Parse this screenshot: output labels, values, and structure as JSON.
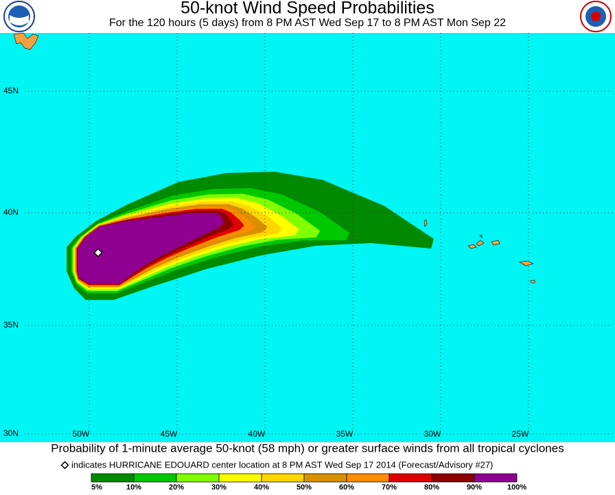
{
  "header": {
    "title": "50-knot Wind Speed Probabilities",
    "subtitle": "For the 120 hours (5 days) from 8 PM AST Wed Sep 17 to 8 PM AST Mon Sep 22"
  },
  "map": {
    "lat_labels": [
      "45N",
      "40N",
      "35N",
      "30N"
    ],
    "lon_labels": [
      "50W",
      "45W",
      "40W",
      "35W",
      "30W",
      "25W"
    ]
  },
  "caption": "Probability of 1-minute average 50-knot (58 mph) or greater surface winds from all tropical cyclones",
  "marker_note": "indicates HURRICANE EDOUARD center location at 8 PM AST Wed Sep 17 2014 (Forecast/Advisory #27)",
  "legend": {
    "items": [
      {
        "label": "5%",
        "color": "#008a00"
      },
      {
        "label": "10%",
        "color": "#00c800"
      },
      {
        "label": "20%",
        "color": "#80ff00"
      },
      {
        "label": "30%",
        "color": "#ffff00"
      },
      {
        "label": "40%",
        "color": "#ffd700"
      },
      {
        "label": "50%",
        "color": "#d89000"
      },
      {
        "label": "60%",
        "color": "#ff8c00"
      },
      {
        "label": "70%",
        "color": "#e00000"
      },
      {
        "label": "80%",
        "color": "#8c0000"
      },
      {
        "label": "90%",
        "color": "#900090"
      }
    ],
    "end_label": "100%"
  }
}
